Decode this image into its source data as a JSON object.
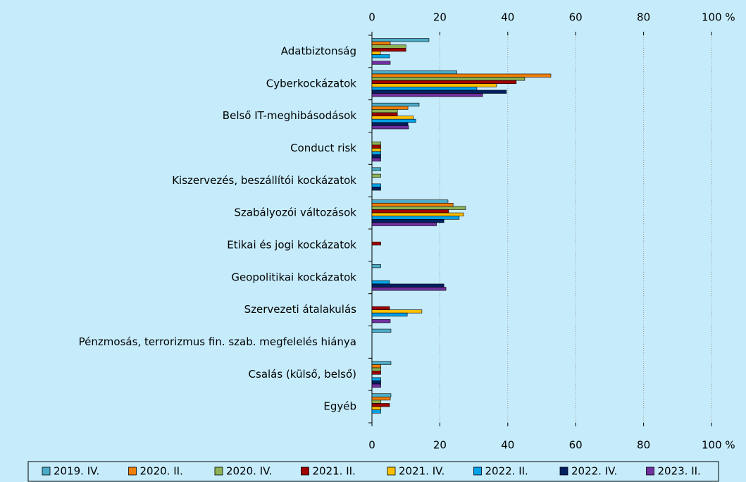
{
  "chart_data": {
    "type": "hbar",
    "categories": [
      "Adatbiztonság",
      "Cyberkockázatok",
      "Belső IT-meghibásodások",
      "Conduct risk",
      "Kiszervezés, beszállítói kockázatok",
      "Szabályozói változások",
      "Etikai és jogi kockázatok",
      "Geopolitikai kockázatok",
      "Szervezeti átalakulás",
      "Pénzmosás, terrorizmus fin. szab. megfelelés hiánya",
      "Csalás (külső, belső)",
      "Egyéb"
    ],
    "series": [
      {
        "name": "2019. IV.",
        "color": "#4bacc6",
        "values": [
          16.8,
          25,
          13.9,
          0,
          2.6,
          22.4,
          0,
          2.6,
          0,
          5.6,
          5.6,
          5.6
        ]
      },
      {
        "name": "2020. II.",
        "color": "#f07f09",
        "values": [
          5.4,
          52.7,
          10.6,
          0,
          0,
          23.9,
          0,
          0,
          0,
          0,
          2.6,
          5.4
        ]
      },
      {
        "name": "2020. IV.",
        "color": "#8db255",
        "values": [
          10,
          45,
          7.5,
          2.6,
          2.6,
          27.6,
          0,
          0,
          0,
          0,
          2.6,
          2.6
        ]
      },
      {
        "name": "2021. II.",
        "color": "#a00000",
        "values": [
          10,
          42.5,
          7.5,
          2.6,
          0,
          22.6,
          2.6,
          0,
          5.2,
          0,
          2.6,
          5.2
        ]
      },
      {
        "name": "2021. IV.",
        "color": "#ffc000",
        "values": [
          2.5,
          36.7,
          12.2,
          2.6,
          0,
          27,
          0,
          0,
          14.7,
          0,
          0,
          2.6
        ]
      },
      {
        "name": "2022. II.",
        "color": "#00a2e8",
        "values": [
          5.2,
          30.9,
          12.9,
          2.6,
          2.6,
          25.7,
          0,
          5.2,
          10.4,
          0,
          2.6,
          2.6
        ]
      },
      {
        "name": "2022. IV.",
        "color": "#002060",
        "values": [
          0,
          39.6,
          10.6,
          2.6,
          2.6,
          21.2,
          0,
          21.2,
          0,
          0,
          2.6,
          0
        ]
      },
      {
        "name": "2023. II.",
        "color": "#7030a0",
        "values": [
          5.4,
          32.6,
          10.8,
          2.6,
          0,
          19,
          0,
          21.8,
          5.4,
          0,
          2.6,
          0
        ]
      }
    ],
    "xlim": [
      0,
      100
    ],
    "xticks": [
      0,
      20,
      40,
      60,
      80,
      {
        "value": 100,
        "label": "100 %"
      }
    ],
    "grid": true,
    "legend": "bottom"
  }
}
